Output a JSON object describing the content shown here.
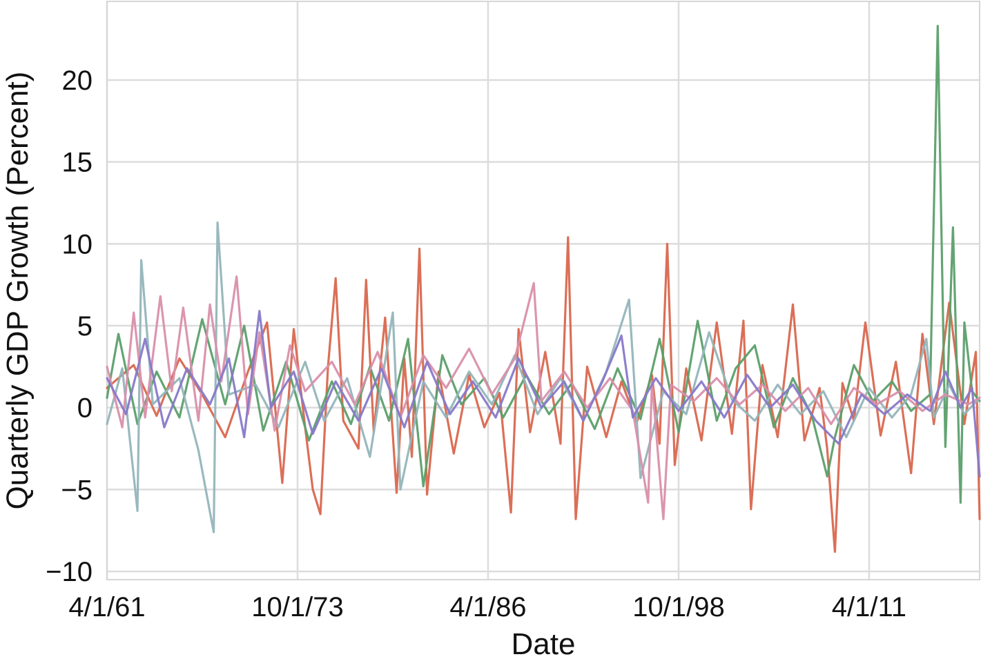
{
  "chart_data": {
    "type": "line",
    "xlabel": "Date",
    "ylabel": "Quarterly GDP Growth (Percent)",
    "x_start": "1961-04-01",
    "x_end": "2018-07-01",
    "ylim": [
      -10.5,
      24.8
    ],
    "yticks": [
      -10,
      -5,
      0,
      5,
      10,
      15,
      20
    ],
    "ytick_labels": [
      "−10",
      "−5",
      "0",
      "5",
      "10",
      "15",
      "20"
    ],
    "xticks": [
      {
        "date": "1961-04-01",
        "label": "4/1/61"
      },
      {
        "date": "1973-10-01",
        "label": "10/1/73"
      },
      {
        "date": "1986-04-01",
        "label": "4/1/86"
      },
      {
        "date": "1998-10-01",
        "label": "10/1/98"
      },
      {
        "date": "2011-04-01",
        "label": "4/1/11"
      }
    ],
    "grid": true,
    "series": [
      {
        "color": "#d9674e",
        "points": [
          [
            "1961-04-01",
            1.2
          ],
          [
            "1963-01-01",
            2.6
          ],
          [
            "1964-07-01",
            -0.5
          ],
          [
            "1966-01-01",
            3.0
          ],
          [
            "1967-07-01",
            0.8
          ],
          [
            "1969-01-01",
            -1.8
          ],
          [
            "1970-07-01",
            2.2
          ],
          [
            "1971-10-01",
            5.2
          ],
          [
            "1972-10-01",
            -4.6
          ],
          [
            "1973-07-01",
            4.8
          ],
          [
            "1974-04-01",
            -1.2
          ],
          [
            "1974-10-01",
            -5.0
          ],
          [
            "1975-04-01",
            -6.5
          ],
          [
            "1975-10-01",
            2.5
          ],
          [
            "1976-04-01",
            7.9
          ],
          [
            "1976-10-01",
            -0.8
          ],
          [
            "1977-10-01",
            -2.5
          ],
          [
            "1978-04-01",
            7.8
          ],
          [
            "1978-10-01",
            -1.5
          ],
          [
            "1979-07-01",
            5.5
          ],
          [
            "1980-04-01",
            -5.2
          ],
          [
            "1980-10-01",
            3.0
          ],
          [
            "1981-04-01",
            -3.0
          ],
          [
            "1981-10-01",
            9.7
          ],
          [
            "1982-04-01",
            -5.3
          ],
          [
            "1983-01-01",
            2.2
          ],
          [
            "1984-01-01",
            -2.8
          ],
          [
            "1985-01-01",
            2.0
          ],
          [
            "1986-01-01",
            -1.2
          ],
          [
            "1987-01-01",
            0.9
          ],
          [
            "1987-10-01",
            -6.4
          ],
          [
            "1988-04-01",
            4.8
          ],
          [
            "1989-01-01",
            -1.5
          ],
          [
            "1990-01-01",
            3.4
          ],
          [
            "1991-01-01",
            -2.2
          ],
          [
            "1991-07-01",
            10.4
          ],
          [
            "1992-01-01",
            -6.8
          ],
          [
            "1992-10-01",
            2.5
          ],
          [
            "1994-01-01",
            -1.8
          ],
          [
            "1995-01-01",
            1.6
          ],
          [
            "1996-01-01",
            -0.9
          ],
          [
            "1997-01-01",
            2.0
          ],
          [
            "1997-07-01",
            -2.2
          ],
          [
            "1998-01-01",
            10.0
          ],
          [
            "1998-07-01",
            -3.5
          ],
          [
            "1999-04-01",
            2.4
          ],
          [
            "2000-04-01",
            -2.0
          ],
          [
            "2001-04-01",
            5.2
          ],
          [
            "2002-04-01",
            -1.6
          ],
          [
            "2003-01-01",
            5.3
          ],
          [
            "2003-07-01",
            -6.2
          ],
          [
            "2004-04-01",
            2.6
          ],
          [
            "2005-04-01",
            -1.8
          ],
          [
            "2006-04-01",
            6.3
          ],
          [
            "2007-01-01",
            -2.0
          ],
          [
            "2008-01-01",
            1.2
          ],
          [
            "2008-07-01",
            -2.5
          ],
          [
            "2009-01-01",
            -8.8
          ],
          [
            "2009-07-01",
            1.5
          ],
          [
            "2010-04-01",
            -0.8
          ],
          [
            "2011-01-01",
            5.2
          ],
          [
            "2012-01-01",
            -1.7
          ],
          [
            "2013-01-01",
            2.8
          ],
          [
            "2014-01-01",
            -4.0
          ],
          [
            "2014-10-01",
            4.5
          ],
          [
            "2015-07-01",
            -1.0
          ],
          [
            "2016-07-01",
            6.4
          ],
          [
            "2017-07-01",
            -1.0
          ],
          [
            "2018-04-01",
            3.4
          ],
          [
            "2018-07-01",
            -6.8
          ]
        ]
      },
      {
        "color": "#5b9f6a",
        "points": [
          [
            "1961-04-01",
            0.6
          ],
          [
            "1962-01-01",
            4.5
          ],
          [
            "1963-04-01",
            -1.0
          ],
          [
            "1964-07-01",
            2.2
          ],
          [
            "1966-01-01",
            -0.6
          ],
          [
            "1967-07-01",
            5.4
          ],
          [
            "1969-01-01",
            0.2
          ],
          [
            "1970-04-01",
            5.0
          ],
          [
            "1971-07-01",
            -1.4
          ],
          [
            "1973-01-01",
            2.8
          ],
          [
            "1974-07-01",
            -2.0
          ],
          [
            "1976-01-01",
            1.6
          ],
          [
            "1977-04-01",
            -1.0
          ],
          [
            "1978-07-01",
            2.5
          ],
          [
            "1979-10-01",
            -0.8
          ],
          [
            "1981-01-01",
            4.2
          ],
          [
            "1982-01-01",
            -4.8
          ],
          [
            "1983-04-01",
            3.2
          ],
          [
            "1984-07-01",
            0.2
          ],
          [
            "1986-01-01",
            1.8
          ],
          [
            "1987-04-01",
            -0.6
          ],
          [
            "1988-10-01",
            2.0
          ],
          [
            "1990-04-01",
            -0.4
          ],
          [
            "1991-10-01",
            1.5
          ],
          [
            "1993-04-01",
            -1.3
          ],
          [
            "1994-10-01",
            2.4
          ],
          [
            "1996-04-01",
            -0.7
          ],
          [
            "1997-07-01",
            4.2
          ],
          [
            "1998-10-01",
            -1.5
          ],
          [
            "2000-01-01",
            5.3
          ],
          [
            "2001-04-01",
            -0.8
          ],
          [
            "2002-07-01",
            2.4
          ],
          [
            "2003-10-01",
            3.8
          ],
          [
            "2005-01-01",
            -1.2
          ],
          [
            "2006-04-01",
            1.8
          ],
          [
            "2007-07-01",
            -0.5
          ],
          [
            "2008-07-01",
            -4.2
          ],
          [
            "2009-01-01",
            -1.8
          ],
          [
            "2010-04-01",
            2.6
          ],
          [
            "2011-07-01",
            0.4
          ],
          [
            "2012-10-01",
            1.6
          ],
          [
            "2014-01-01",
            -0.2
          ],
          [
            "2015-04-01",
            0.8
          ],
          [
            "2015-10-01",
            23.3
          ],
          [
            "2016-04-01",
            -2.4
          ],
          [
            "2016-10-01",
            11.0
          ],
          [
            "2017-04-01",
            -5.8
          ],
          [
            "2017-07-01",
            5.2
          ],
          [
            "2018-01-01",
            1.0
          ],
          [
            "2018-07-01",
            0.4
          ]
        ]
      },
      {
        "color": "#94b5bb",
        "points": [
          [
            "1961-04-01",
            -1.0
          ],
          [
            "1962-04-01",
            2.4
          ],
          [
            "1963-04-01",
            -6.3
          ],
          [
            "1963-07-01",
            9.0
          ],
          [
            "1964-04-01",
            0.2
          ],
          [
            "1966-01-01",
            1.8
          ],
          [
            "1967-04-01",
            -2.6
          ],
          [
            "1968-04-01",
            -7.6
          ],
          [
            "1968-07-01",
            11.3
          ],
          [
            "1969-04-01",
            0.8
          ],
          [
            "1971-01-01",
            1.4
          ],
          [
            "1972-07-01",
            -1.2
          ],
          [
            "1974-04-01",
            2.8
          ],
          [
            "1975-07-01",
            -0.8
          ],
          [
            "1977-01-01",
            1.8
          ],
          [
            "1978-07-01",
            -3.0
          ],
          [
            "1980-01-01",
            5.8
          ],
          [
            "1980-07-01",
            -5.0
          ],
          [
            "1982-01-01",
            1.6
          ],
          [
            "1983-07-01",
            -0.6
          ],
          [
            "1985-01-01",
            2.2
          ],
          [
            "1986-07-01",
            0.2
          ],
          [
            "1988-01-01",
            3.2
          ],
          [
            "1989-07-01",
            -0.4
          ],
          [
            "1991-01-01",
            1.8
          ],
          [
            "1992-07-01",
            -0.8
          ],
          [
            "1994-01-01",
            2.2
          ],
          [
            "1995-07-01",
            6.6
          ],
          [
            "1996-04-01",
            -4.3
          ],
          [
            "1997-10-01",
            1.0
          ],
          [
            "1999-04-01",
            -0.4
          ],
          [
            "2000-10-01",
            4.6
          ],
          [
            "2002-04-01",
            0.5
          ],
          [
            "2003-10-01",
            -0.8
          ],
          [
            "2005-04-01",
            1.4
          ],
          [
            "2006-10-01",
            -0.4
          ],
          [
            "2008-04-01",
            1.0
          ],
          [
            "2009-10-01",
            -1.8
          ],
          [
            "2011-04-01",
            1.2
          ],
          [
            "2012-10-01",
            -0.6
          ],
          [
            "2014-01-01",
            0.8
          ],
          [
            "2015-01-01",
            4.2
          ],
          [
            "2015-07-01",
            -0.6
          ],
          [
            "2016-07-01",
            1.4
          ],
          [
            "2017-07-01",
            -0.4
          ],
          [
            "2018-07-01",
            0.6
          ]
        ]
      },
      {
        "color": "#d98fab",
        "points": [
          [
            "1961-04-01",
            2.5
          ],
          [
            "1962-04-01",
            -1.2
          ],
          [
            "1963-01-01",
            5.8
          ],
          [
            "1963-10-01",
            -0.6
          ],
          [
            "1964-10-01",
            6.8
          ],
          [
            "1965-07-01",
            1.0
          ],
          [
            "1966-04-01",
            6.1
          ],
          [
            "1967-04-01",
            -0.8
          ],
          [
            "1968-01-01",
            6.3
          ],
          [
            "1968-10-01",
            1.6
          ],
          [
            "1969-10-01",
            8.0
          ],
          [
            "1970-07-01",
            -0.4
          ],
          [
            "1971-04-01",
            4.6
          ],
          [
            "1972-04-01",
            -1.4
          ],
          [
            "1973-04-01",
            3.8
          ],
          [
            "1974-04-01",
            1.0
          ],
          [
            "1976-01-01",
            2.8
          ],
          [
            "1977-07-01",
            0.2
          ],
          [
            "1979-01-01",
            3.4
          ],
          [
            "1980-07-01",
            -0.6
          ],
          [
            "1982-01-01",
            3.2
          ],
          [
            "1983-07-01",
            1.2
          ],
          [
            "1985-01-01",
            3.6
          ],
          [
            "1986-07-01",
            0.8
          ],
          [
            "1988-01-01",
            3.0
          ],
          [
            "1989-04-01",
            7.6
          ],
          [
            "1989-10-01",
            0.4
          ],
          [
            "1991-04-01",
            2.2
          ],
          [
            "1992-10-01",
            0.0
          ],
          [
            "1994-04-01",
            1.8
          ],
          [
            "1995-10-01",
            -0.2
          ],
          [
            "1996-10-01",
            -5.8
          ],
          [
            "1997-01-01",
            1.6
          ],
          [
            "1997-10-01",
            -6.8
          ],
          [
            "1998-04-01",
            1.4
          ],
          [
            "1999-10-01",
            0.4
          ],
          [
            "2001-04-01",
            1.8
          ],
          [
            "2002-10-01",
            0.2
          ],
          [
            "2004-04-01",
            1.4
          ],
          [
            "2005-10-01",
            -0.2
          ],
          [
            "2007-04-01",
            1.2
          ],
          [
            "2008-10-01",
            -1.0
          ],
          [
            "2010-04-01",
            1.2
          ],
          [
            "2011-10-01",
            0.2
          ],
          [
            "2013-04-01",
            1.0
          ],
          [
            "2014-10-01",
            -0.2
          ],
          [
            "2016-04-01",
            0.8
          ],
          [
            "2017-10-01",
            0.2
          ],
          [
            "2018-07-01",
            0.6
          ]
        ]
      },
      {
        "color": "#8779c9",
        "points": [
          [
            "1961-04-01",
            1.8
          ],
          [
            "1962-07-01",
            -0.4
          ],
          [
            "1963-10-01",
            4.2
          ],
          [
            "1965-01-01",
            -1.2
          ],
          [
            "1966-07-01",
            2.4
          ],
          [
            "1968-01-01",
            0.2
          ],
          [
            "1969-04-01",
            3.0
          ],
          [
            "1970-04-01",
            -1.8
          ],
          [
            "1971-04-01",
            5.9
          ],
          [
            "1972-01-01",
            0.0
          ],
          [
            "1973-07-01",
            2.2
          ],
          [
            "1974-10-01",
            -1.6
          ],
          [
            "1976-04-01",
            1.6
          ],
          [
            "1977-10-01",
            -0.8
          ],
          [
            "1979-04-01",
            2.4
          ],
          [
            "1980-10-01",
            -1.2
          ],
          [
            "1982-04-01",
            2.8
          ],
          [
            "1983-10-01",
            -0.4
          ],
          [
            "1985-04-01",
            1.6
          ],
          [
            "1986-10-01",
            -0.6
          ],
          [
            "1988-04-01",
            3.0
          ],
          [
            "1989-10-01",
            0.0
          ],
          [
            "1991-04-01",
            1.6
          ],
          [
            "1992-07-01",
            -0.8
          ],
          [
            "1993-10-01",
            1.6
          ],
          [
            "1995-01-01",
            4.4
          ],
          [
            "1995-10-01",
            -0.6
          ],
          [
            "1997-04-01",
            1.8
          ],
          [
            "1998-10-01",
            -0.2
          ],
          [
            "2000-04-01",
            1.6
          ],
          [
            "2001-10-01",
            -0.6
          ],
          [
            "2003-04-01",
            2.0
          ],
          [
            "2004-10-01",
            0.0
          ],
          [
            "2006-04-01",
            1.4
          ],
          [
            "2007-10-01",
            -0.8
          ],
          [
            "2009-04-01",
            -2.2
          ],
          [
            "2010-10-01",
            0.8
          ],
          [
            "2012-04-01",
            -0.4
          ],
          [
            "2013-10-01",
            0.8
          ],
          [
            "2015-04-01",
            -0.2
          ],
          [
            "2016-04-01",
            2.2
          ],
          [
            "2017-04-01",
            0.0
          ],
          [
            "2018-01-01",
            1.2
          ],
          [
            "2018-07-01",
            -4.2
          ]
        ]
      }
    ]
  }
}
